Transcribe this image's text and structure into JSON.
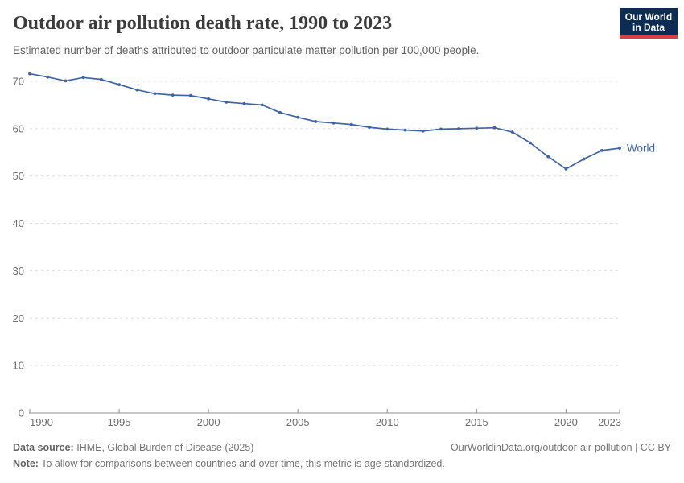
{
  "header": {
    "title": "Outdoor air pollution death rate, 1990 to 2023",
    "subtitle": "Estimated number of deaths attributed to outdoor particulate matter pollution per 100,000 people.",
    "logo": {
      "line1": "Our World",
      "line2": "in Data"
    }
  },
  "chart_data": {
    "type": "line",
    "title": "Outdoor air pollution death rate, 1990 to 2023",
    "ylabel": "",
    "xlabel": "",
    "x": [
      1990,
      1991,
      1992,
      1993,
      1994,
      1995,
      1996,
      1997,
      1998,
      1999,
      2000,
      2001,
      2002,
      2003,
      2004,
      2005,
      2006,
      2007,
      2008,
      2009,
      2010,
      2011,
      2012,
      2013,
      2014,
      2015,
      2016,
      2017,
      2018,
      2019,
      2020,
      2021,
      2022,
      2023
    ],
    "series": [
      {
        "name": "World",
        "values": [
          71.6,
          70.9,
          70.1,
          70.8,
          70.4,
          69.3,
          68.2,
          67.4,
          67.1,
          67.0,
          66.3,
          65.6,
          65.3,
          65.0,
          63.4,
          62.4,
          61.5,
          61.2,
          60.9,
          60.3,
          59.9,
          59.7,
          59.5,
          59.9,
          60.0,
          60.1,
          60.2,
          59.3,
          57.0,
          54.1,
          51.5,
          53.6,
          55.4,
          55.9
        ]
      }
    ],
    "ylim": [
      0,
      72
    ],
    "yticks": [
      0,
      10,
      20,
      30,
      40,
      50,
      60,
      70
    ],
    "xticks": [
      1990,
      1995,
      2000,
      2005,
      2010,
      2015,
      2020,
      2023
    ],
    "grid": "horizontal-dashed",
    "legend_position": "end-of-line-label",
    "markers": true
  },
  "footer": {
    "source_label": "Data source:",
    "source_text": "IHME, Global Burden of Disease (2025)",
    "link_text": "OurWorldinData.org/outdoor-air-pollution | CC BY",
    "note_label": "Note:",
    "note_text": "To allow for comparisons between countries and over time, this metric is age-standardized."
  },
  "colors": {
    "line": "#3d64a5",
    "grid": "#dcdcdc",
    "axis": "#8f8f8f",
    "tick_label": "#6e6e6e",
    "logo_bg": "#0d2c54",
    "logo_accent": "#d8404a"
  }
}
